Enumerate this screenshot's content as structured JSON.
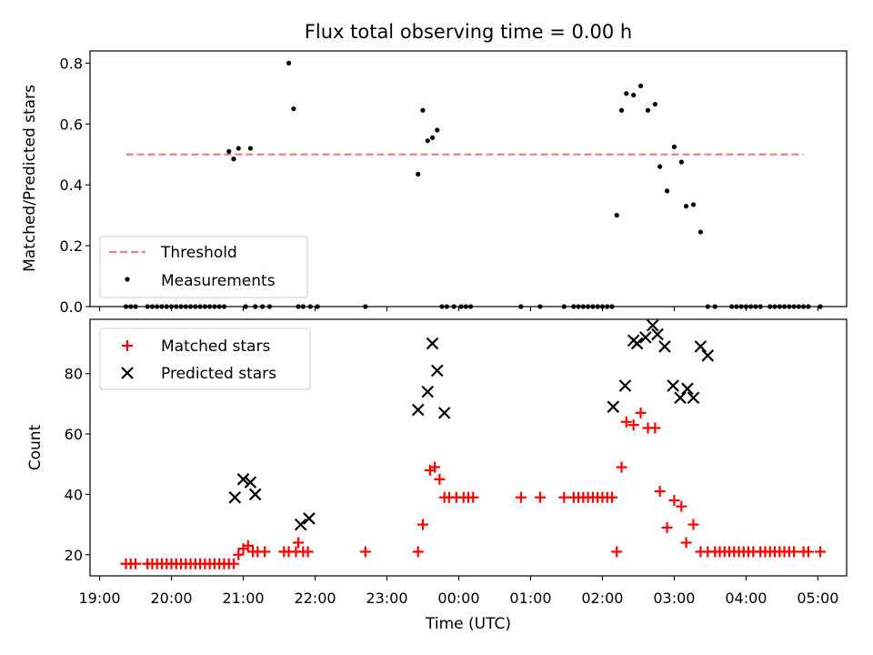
{
  "chart_data": [
    {
      "type": "scatter",
      "title": "Flux total observing time = 0.00 h",
      "ylabel": "Matched/Predicted stars",
      "xlabel": "",
      "ylim": [
        0,
        0.84
      ],
      "yticks": [
        0.0,
        0.2,
        0.4,
        0.6,
        0.8
      ],
      "ytick_labels": [
        "0.0",
        "0.2",
        "0.4",
        "0.6",
        "0.8"
      ],
      "legend_placement": "lower-left",
      "threshold": {
        "name": "Threshold",
        "value": 0.5,
        "x_start": "19:22",
        "x_end": "04:48",
        "color": "#f08080",
        "style": "dashed"
      },
      "series": [
        {
          "name": "Measurements",
          "color": "#000000",
          "marker": "dot",
          "x": [
            "19:22",
            "19:26",
            "19:30",
            "19:40",
            "19:44",
            "19:48",
            "19:52",
            "19:56",
            "20:00",
            "20:04",
            "20:08",
            "20:12",
            "20:16",
            "20:20",
            "20:24",
            "20:28",
            "20:32",
            "20:36",
            "20:40",
            "20:44",
            "20:48",
            "20:52",
            "20:56",
            "21:02",
            "21:06",
            "21:10",
            "21:16",
            "21:22",
            "21:38",
            "21:42",
            "21:46",
            "21:50",
            "21:56",
            "22:02",
            "22:42",
            "23:26",
            "23:30",
            "23:34",
            "23:38",
            "23:42",
            "23:46",
            "23:50",
            "23:56",
            "00:02",
            "00:06",
            "00:10",
            "00:52",
            "01:08",
            "01:28",
            "01:36",
            "01:40",
            "01:44",
            "01:48",
            "01:52",
            "01:56",
            "02:00",
            "02:04",
            "02:08",
            "02:12",
            "02:16",
            "02:20",
            "02:26",
            "02:32",
            "02:38",
            "02:44",
            "02:48",
            "02:54",
            "03:00",
            "03:06",
            "03:10",
            "03:16",
            "03:22",
            "03:28",
            "03:34",
            "03:48",
            "03:52",
            "03:56",
            "04:00",
            "04:04",
            "04:08",
            "04:12",
            "04:20",
            "04:24",
            "04:28",
            "04:32",
            "04:36",
            "04:40",
            "04:44",
            "04:48",
            "04:52",
            "05:02"
          ],
          "y": [
            0,
            0,
            0,
            0,
            0,
            0,
            0,
            0,
            0,
            0,
            0,
            0,
            0,
            0,
            0,
            0,
            0,
            0,
            0,
            0,
            0.51,
            0.485,
            0.52,
            0,
            0.52,
            0,
            0,
            0,
            0.8,
            0.65,
            0,
            0,
            0,
            0,
            0,
            0.435,
            0.645,
            0.545,
            0.555,
            0.58,
            0,
            0,
            0,
            0,
            0,
            0,
            0,
            0,
            0,
            0,
            0,
            0,
            0,
            0,
            0,
            0,
            0,
            0,
            0.3,
            0.645,
            0.7,
            0.695,
            0.725,
            0.645,
            0.665,
            0.46,
            0.38,
            0.525,
            0.475,
            0.33,
            0.335,
            0.245,
            0,
            0,
            0,
            0,
            0,
            0,
            0,
            0,
            0,
            0,
            0,
            0,
            0,
            0,
            0,
            0,
            0,
            0,
            0
          ]
        }
      ]
    },
    {
      "type": "scatter",
      "title": "",
      "xlabel": "Time (UTC)",
      "ylabel": "Count",
      "ylim": [
        13,
        98
      ],
      "yticks": [
        20,
        40,
        60,
        80
      ],
      "ytick_labels": [
        "20",
        "40",
        "60",
        "80"
      ],
      "xticks": [
        "19:00",
        "20:00",
        "21:00",
        "22:00",
        "23:00",
        "00:00",
        "01:00",
        "02:00",
        "03:00",
        "04:00",
        "05:00"
      ],
      "legend_placement": "upper-left",
      "series": [
        {
          "name": "Matched stars",
          "color": "#ff0000",
          "marker": "plus",
          "x": [
            "19:22",
            "19:26",
            "19:30",
            "19:40",
            "19:44",
            "19:48",
            "19:52",
            "19:56",
            "20:00",
            "20:04",
            "20:08",
            "20:12",
            "20:16",
            "20:20",
            "20:24",
            "20:28",
            "20:32",
            "20:36",
            "20:40",
            "20:44",
            "20:48",
            "20:52",
            "20:56",
            "21:00",
            "21:04",
            "21:08",
            "21:12",
            "21:18",
            "21:34",
            "21:38",
            "21:44",
            "21:46",
            "21:50",
            "21:54",
            "22:42",
            "23:26",
            "23:30",
            "23:36",
            "23:40",
            "23:44",
            "23:48",
            "23:52",
            "23:58",
            "00:04",
            "00:08",
            "00:12",
            "00:52",
            "01:08",
            "01:28",
            "01:36",
            "01:40",
            "01:44",
            "01:48",
            "01:52",
            "01:56",
            "02:00",
            "02:04",
            "02:08",
            "02:12",
            "02:16",
            "02:20",
            "02:26",
            "02:32",
            "02:38",
            "02:44",
            "02:48",
            "02:54",
            "03:00",
            "03:06",
            "03:10",
            "03:16",
            "03:22",
            "03:28",
            "03:34",
            "03:38",
            "03:42",
            "03:46",
            "03:50",
            "03:54",
            "03:58",
            "04:02",
            "04:06",
            "04:12",
            "04:16",
            "04:20",
            "04:24",
            "04:28",
            "04:32",
            "04:36",
            "04:40",
            "04:48",
            "04:52",
            "05:02"
          ],
          "y": [
            17,
            17,
            17,
            17,
            17,
            17,
            17,
            17,
            17,
            17,
            17,
            17,
            17,
            17,
            17,
            17,
            17,
            17,
            17,
            17,
            17,
            17,
            20,
            22,
            23,
            21,
            21,
            21,
            21,
            21,
            21,
            24,
            21,
            21,
            21,
            21,
            30,
            48,
            49,
            45,
            39,
            39,
            39,
            39,
            39,
            39,
            39,
            39,
            39,
            39,
            39,
            39,
            39,
            39,
            39,
            39,
            39,
            39,
            21,
            49,
            64,
            63,
            67,
            62,
            62,
            41,
            29,
            38,
            36,
            24,
            30,
            21,
            21,
            21,
            21,
            21,
            21,
            21,
            21,
            21,
            21,
            21,
            21,
            21,
            21,
            21,
            21,
            21,
            21,
            21,
            21,
            21,
            21
          ]
        },
        {
          "name": "Predicted stars",
          "color": "#000000",
          "marker": "x",
          "x": [
            "20:53",
            "21:00",
            "21:06",
            "21:10",
            "21:48",
            "21:55",
            "23:26",
            "23:34",
            "23:38",
            "23:42",
            "23:48",
            "02:09",
            "02:19",
            "02:26",
            "02:29",
            "02:36",
            "02:42",
            "02:46",
            "02:52",
            "02:59",
            "03:05",
            "03:11",
            "03:16",
            "03:22",
            "03:28"
          ],
          "y": [
            39,
            45,
            44,
            40,
            30,
            32,
            68,
            74,
            90,
            81,
            67,
            69,
            76,
            91,
            90,
            92,
            96,
            93,
            89,
            76,
            72,
            75,
            72,
            89,
            86
          ]
        }
      ]
    }
  ]
}
